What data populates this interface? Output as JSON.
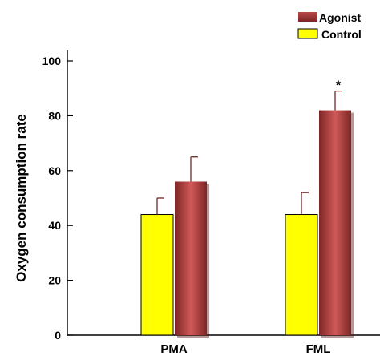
{
  "chart_data": {
    "type": "bar",
    "categories": [
      "PMA",
      "FML"
    ],
    "series": [
      {
        "name": "Control",
        "values": [
          44,
          44
        ],
        "errors": [
          6,
          8
        ],
        "color": "#ffff00",
        "border": "#000000"
      },
      {
        "name": "Agonist",
        "values": [
          56,
          82
        ],
        "errors": [
          9,
          7
        ],
        "color": "#9a3434",
        "highlight": "#cf5a58"
      }
    ],
    "ylabel": "Oxygen consumption rate",
    "ylim": [
      0,
      100
    ],
    "yticks": [
      0,
      20,
      40,
      60,
      80,
      100
    ],
    "annotations": [
      {
        "category": "FML",
        "series": "Agonist",
        "text": "*"
      }
    ],
    "legend": {
      "placement": "top-right",
      "order": [
        "Agonist",
        "Control"
      ]
    },
    "grid": false
  }
}
